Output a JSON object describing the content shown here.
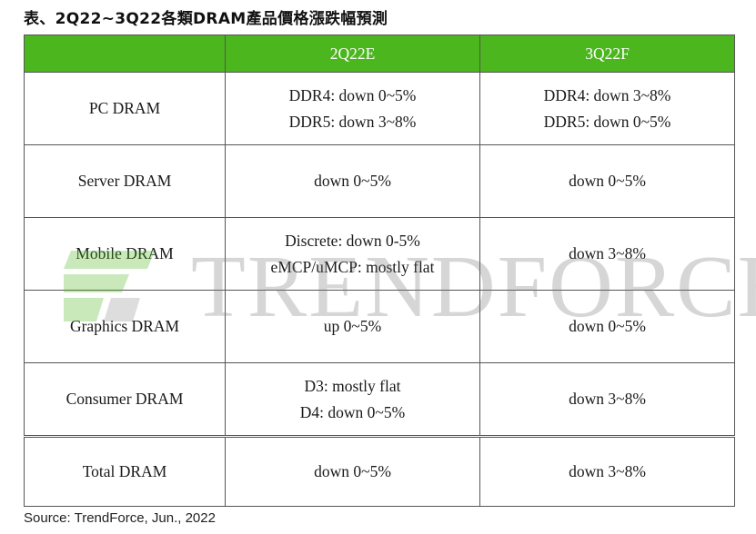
{
  "title": "表、2Q22~3Q22各類DRAM產品價格漲跌幅預測",
  "header": {
    "col1": "",
    "col2": "2Q22E",
    "col3": "3Q22F"
  },
  "rows": [
    {
      "label": "PC DRAM",
      "q2": [
        "DDR4: down 0~5%",
        "DDR5: down 3~8%"
      ],
      "q3": [
        "DDR4: down 3~8%",
        "DDR5: down 0~5%"
      ]
    },
    {
      "label": "Server DRAM",
      "q2": [
        "down 0~5%"
      ],
      "q3": [
        "down 0~5%"
      ]
    },
    {
      "label": "Mobile DRAM",
      "q2": [
        "Discrete: down 0-5%",
        "eMCP/uMCP: mostly flat"
      ],
      "q3": [
        "down 3~8%"
      ]
    },
    {
      "label": "Graphics DRAM",
      "q2": [
        "up 0~5%"
      ],
      "q3": [
        "down 0~5%"
      ]
    },
    {
      "label": "Consumer DRAM",
      "q2": [
        "D3: mostly flat",
        "D4: down 0~5%"
      ],
      "q3": [
        "down 3~8%"
      ]
    },
    {
      "label": "Total DRAM",
      "q2": [
        "down 0~5%"
      ],
      "q3": [
        "down 3~8%"
      ]
    }
  ],
  "watermark": {
    "text": "TRENDFORCE",
    "logo_icon": "trendforce-logo-icon"
  },
  "source": "Source: TrendForce, Jun., 2022",
  "colors": {
    "header_bg": "#4cb61f",
    "header_text": "#ffffff",
    "border": "#555555",
    "watermark": "#787878"
  }
}
